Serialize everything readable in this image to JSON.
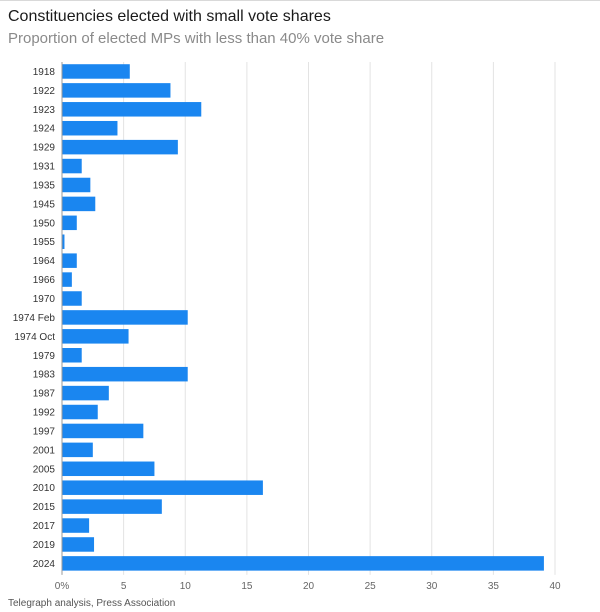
{
  "header": {
    "title": "Constituencies elected with small vote shares",
    "subtitle": "Proportion of elected MPs with less than 40% vote share"
  },
  "footer": {
    "source": "Telegraph analysis, Press Association"
  },
  "colors": {
    "bar": "#1a86f0",
    "grid": "#e3e3e3",
    "axis": "#9a9a9a"
  },
  "chart_data": {
    "type": "bar",
    "orientation": "horizontal",
    "categories": [
      "1918",
      "1922",
      "1923",
      "1924",
      "1929",
      "1931",
      "1935",
      "1945",
      "1950",
      "1955",
      "1964",
      "1966",
      "1970",
      "1974 Feb",
      "1974 Oct",
      "1979",
      "1983",
      "1987",
      "1992",
      "1997",
      "2001",
      "2005",
      "2010",
      "2015",
      "2017",
      "2019",
      "2024"
    ],
    "values": [
      5.5,
      8.8,
      11.3,
      4.5,
      9.4,
      1.6,
      2.3,
      2.7,
      1.2,
      0.2,
      1.2,
      0.8,
      1.6,
      10.2,
      5.4,
      1.6,
      10.2,
      3.8,
      2.9,
      6.6,
      2.5,
      7.5,
      16.3,
      8.1,
      2.2,
      2.6,
      39.1
    ],
    "xticks": [
      "0%",
      "5",
      "10",
      "15",
      "20",
      "25",
      "30",
      "35",
      "40"
    ],
    "xlim": [
      0,
      40
    ],
    "grid": true
  }
}
